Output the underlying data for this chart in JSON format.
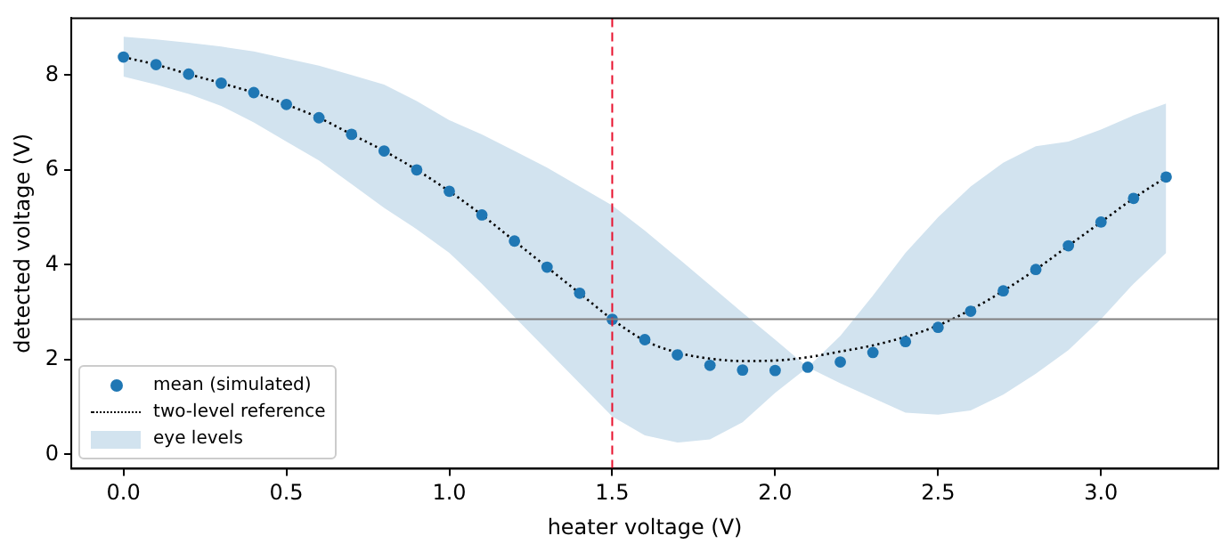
{
  "chart_data": {
    "type": "scatter",
    "xlabel": "heater voltage (V)",
    "ylabel": "detected voltage (V)",
    "x": [
      0,
      0.1,
      0.2,
      0.3,
      0.4,
      0.5,
      0.6,
      0.7,
      0.8,
      0.9,
      1.0,
      1.1,
      1.2,
      1.3,
      1.4,
      1.5,
      1.6,
      1.7,
      1.8,
      1.9,
      2.0,
      2.1,
      2.2,
      2.3,
      2.4,
      2.5,
      2.6,
      2.7,
      2.8,
      2.9,
      3.0,
      3.1,
      3.2
    ],
    "series": [
      {
        "name": "mean (simulated)",
        "marker": "circle",
        "color": "#1f77b4",
        "values": [
          8.38,
          8.22,
          8.02,
          7.83,
          7.63,
          7.38,
          7.1,
          6.75,
          6.4,
          6.0,
          5.55,
          5.05,
          4.5,
          3.95,
          3.4,
          2.85,
          2.42,
          2.1,
          1.88,
          1.78,
          1.77,
          1.84,
          1.95,
          2.15,
          2.38,
          2.68,
          3.02,
          3.45,
          3.9,
          4.4,
          4.9,
          5.4,
          5.85
        ]
      },
      {
        "name": "two-level reference",
        "type": "line",
        "marker": "none",
        "line_style": "dotted",
        "color": "#000000",
        "values": [
          8.38,
          8.22,
          8.02,
          7.83,
          7.63,
          7.38,
          7.1,
          6.75,
          6.4,
          6.0,
          5.55,
          5.05,
          4.5,
          3.95,
          3.4,
          2.85,
          2.4,
          2.15,
          2.02,
          1.97,
          1.98,
          2.05,
          2.17,
          2.3,
          2.48,
          2.72,
          3.05,
          3.45,
          3.9,
          4.4,
          4.9,
          5.4,
          5.85
        ]
      },
      {
        "name": "eye levels",
        "type": "area",
        "color": "#d2e3ef",
        "values": [
          null,
          null,
          null,
          null,
          null,
          null,
          null,
          null,
          null,
          null,
          null,
          null,
          null,
          null,
          null,
          null,
          null,
          null,
          null,
          null,
          null,
          null,
          null,
          null,
          null,
          null,
          null,
          null,
          null,
          null,
          null,
          null,
          null
        ],
        "lower": [
          7.97,
          7.8,
          7.6,
          7.35,
          7.0,
          6.6,
          6.2,
          5.7,
          5.2,
          4.75,
          4.25,
          3.6,
          2.9,
          2.2,
          1.5,
          0.8,
          0.4,
          0.25,
          0.32,
          0.68,
          1.3,
          1.84,
          1.5,
          1.19,
          0.88,
          0.84,
          0.93,
          1.26,
          1.7,
          2.2,
          2.85,
          3.6,
          4.25
        ],
        "upper": [
          8.81,
          8.75,
          8.68,
          8.6,
          8.5,
          8.35,
          8.2,
          8.0,
          7.8,
          7.45,
          7.05,
          6.75,
          6.4,
          6.05,
          5.65,
          5.25,
          4.72,
          4.15,
          3.57,
          2.99,
          2.42,
          1.84,
          2.5,
          3.35,
          4.25,
          5.0,
          5.65,
          6.15,
          6.5,
          6.6,
          6.85,
          7.15,
          7.4
        ]
      }
    ],
    "xlim": [
      -0.16,
      3.36
    ],
    "ylim": [
      -0.3,
      9.2
    ],
    "xticks": [
      {
        "value": 0,
        "label": "0.0"
      },
      {
        "value": 0.5,
        "label": "0.5"
      },
      {
        "value": 1,
        "label": "1.0"
      },
      {
        "value": 1.5,
        "label": "1.5"
      },
      {
        "value": 2,
        "label": "2.0"
      },
      {
        "value": 2.5,
        "label": "2.5"
      },
      {
        "value": 3,
        "label": "3.0"
      }
    ],
    "yticks": [
      0,
      2,
      4,
      6,
      8
    ],
    "ref_lines": [
      {
        "axis": "x",
        "value": 1.5,
        "color": "#e8112d",
        "line_style": "dashed"
      },
      {
        "axis": "y",
        "value": 2.85,
        "color": "#808080",
        "line_style": "solid"
      }
    ],
    "legend": "bottom left"
  }
}
